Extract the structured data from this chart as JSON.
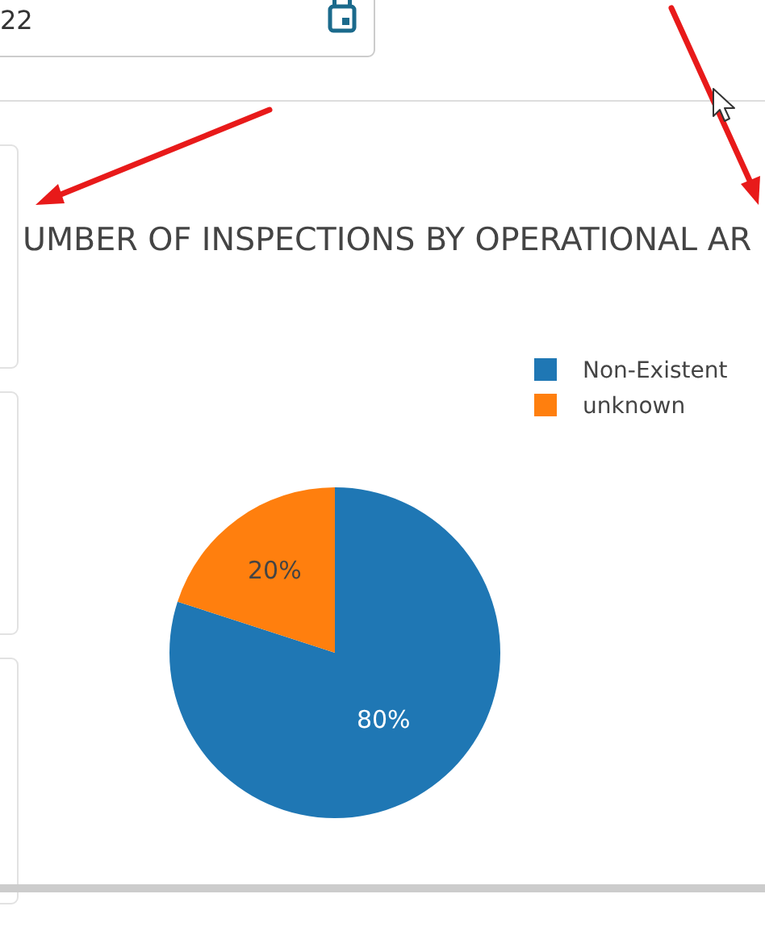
{
  "chart_data": {
    "type": "pie",
    "title": "UMBER OF INSPECTIONS BY OPERATIONAL AR",
    "categories": [
      "Non-Existent",
      "unknown"
    ],
    "values": [
      80,
      20
    ],
    "colors": [
      "#1f77b4",
      "#ff7f0e"
    ],
    "value_labels": [
      "80%",
      "20%"
    ],
    "legend": "top right",
    "annotations": [
      "22"
    ]
  }
}
